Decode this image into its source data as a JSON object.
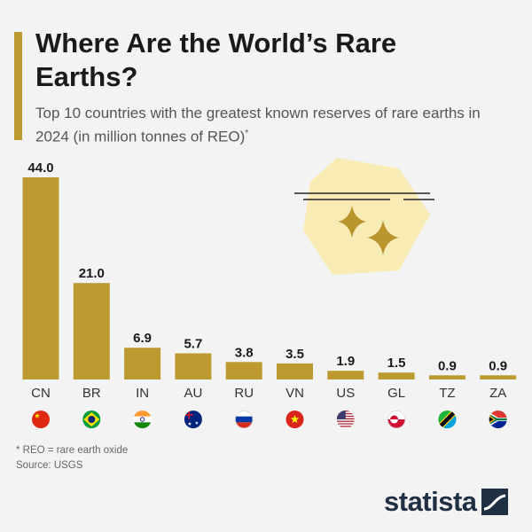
{
  "header": {
    "title": "Where Are the World’s Rare Earths?",
    "subtitle": "Top 10 countries with the greatest known reserves of rare earths in 2024 (in million tonnes of REO)",
    "subtitle_marker": "*"
  },
  "chart_data": {
    "type": "bar",
    "title": "Where Are the World’s Rare Earths?",
    "subtitle": "Top 10 countries with the greatest known reserves of rare earths in 2024 (in million tonnes of REO)",
    "xlabel": "",
    "ylabel": "",
    "categories": [
      "CN",
      "BR",
      "IN",
      "AU",
      "RU",
      "VN",
      "US",
      "GL",
      "TZ",
      "ZA"
    ],
    "values": [
      44.0,
      21.0,
      6.9,
      5.7,
      3.8,
      3.5,
      1.9,
      1.5,
      0.9,
      0.9
    ],
    "value_labels": [
      "44.0",
      "21.0",
      "6.9",
      "5.7",
      "3.8",
      "3.5",
      "1.9",
      "1.5",
      "0.9",
      "0.9"
    ],
    "flag_icons": [
      "china-flag-icon",
      "brazil-flag-icon",
      "india-flag-icon",
      "australia-flag-icon",
      "russia-flag-icon",
      "vietnam-flag-icon",
      "usa-flag-icon",
      "greenland-flag-icon",
      "tanzania-flag-icon",
      "south-africa-flag-icon"
    ],
    "ylim": [
      0,
      44
    ],
    "grid": false,
    "legend": "none",
    "bar_color": "#bc9a2f"
  },
  "footer": {
    "note": "* REO = rare earth oxide",
    "source": "Source: USGS",
    "brand": "statista"
  },
  "colors": {
    "accent": "#bc9a2f",
    "text": "#1a1a1a",
    "brand": "#1f2f44",
    "background": "#f3f3f3"
  }
}
